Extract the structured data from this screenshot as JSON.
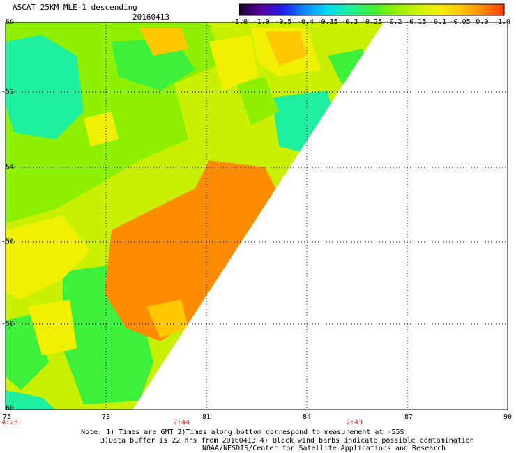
{
  "header": {
    "title": "ASCAT 25KM MLE-1 descending",
    "date": "20160413"
  },
  "colorbar": {
    "labels": [
      "-3.0",
      "-1.0",
      "-0.5",
      "-0.4",
      "-0.35",
      "-0.3",
      "-0.25",
      "-0.2",
      "-0.15",
      "-0.1",
      "-0.05",
      "0.0",
      "1.0"
    ],
    "colors": [
      "#180028",
      "#5a00a0",
      "#1e1ef0",
      "#0a8cff",
      "#00dcf0",
      "#1ef0a0",
      "#3cf03c",
      "#8cf000",
      "#c8f000",
      "#f0f000",
      "#ffc800",
      "#ff8c00",
      "#ff3c00"
    ]
  },
  "axes": {
    "lat_labels": [
      "-50",
      "-52",
      "-54",
      "-56",
      "-58",
      "-60"
    ],
    "lon_labels": [
      "75",
      "78",
      "81",
      "84",
      "87",
      "90"
    ],
    "time_labels": [
      "4:25",
      "2:44",
      "2:43"
    ]
  },
  "notes": {
    "line1": "Note: 1) Times are GMT 2)Times along bottom correspond to measurement at -55S",
    "line2": "3)Data buffer is 22 hrs from 20160413 4) Black wind barbs indicate possible contamination",
    "line3": "NOAA/NESDIS/Center for Satellite Applications and Research"
  }
}
